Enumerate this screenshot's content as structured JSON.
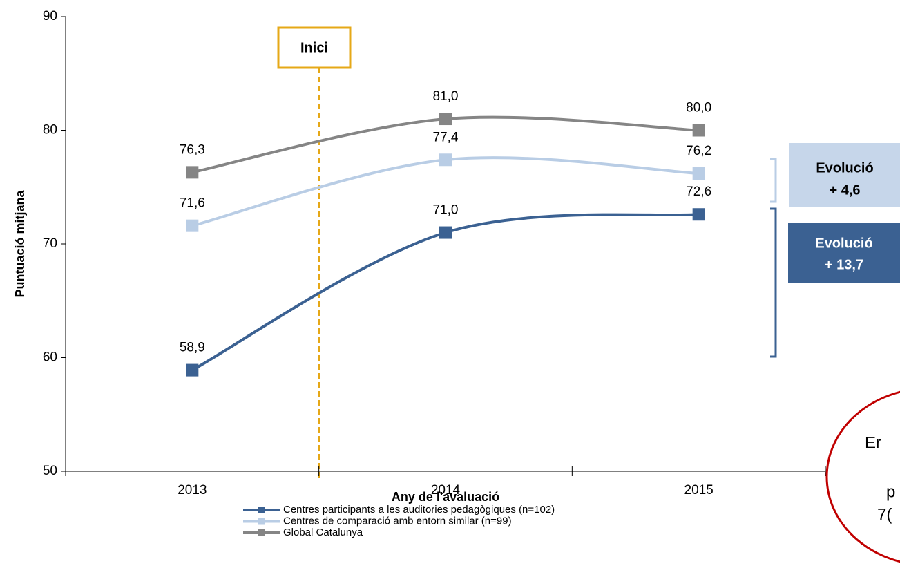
{
  "chart_data": {
    "type": "line",
    "categories": [
      "2013",
      "2014",
      "2015"
    ],
    "series": [
      {
        "name": "Centres participants a les auditories pedagògiques (n=102)",
        "color": "#3b6192",
        "values": [
          58.9,
          71.0,
          72.6
        ],
        "value_labels": [
          "58,9",
          "71,0",
          "72,6"
        ]
      },
      {
        "name": "Centres de comparació amb entorn similar (n=99)",
        "color": "#b9cde5",
        "values": [
          71.6,
          77.4,
          76.2
        ],
        "value_labels": [
          "71,6",
          "77,4",
          "76,2"
        ]
      },
      {
        "name": "Global Catalunya",
        "color": "#858585",
        "values": [
          76.3,
          81.0,
          80.0
        ],
        "value_labels": [
          "76,3",
          "81,0",
          "80,0"
        ]
      }
    ],
    "ylim": [
      50,
      90
    ],
    "yticks": [
      50,
      60,
      70,
      80,
      90
    ],
    "y_label": "Puntuació mitjana",
    "x_label": "Any de l'avaluació",
    "smooth": true,
    "annotations": {
      "start": "Inici",
      "evolution_light": [
        "Evolució",
        "+ 4,6"
      ],
      "evolution_dark": [
        "Evolució",
        "+ 13,7"
      ],
      "callout": [
        "Er",
        "p",
        "7("
      ]
    }
  }
}
